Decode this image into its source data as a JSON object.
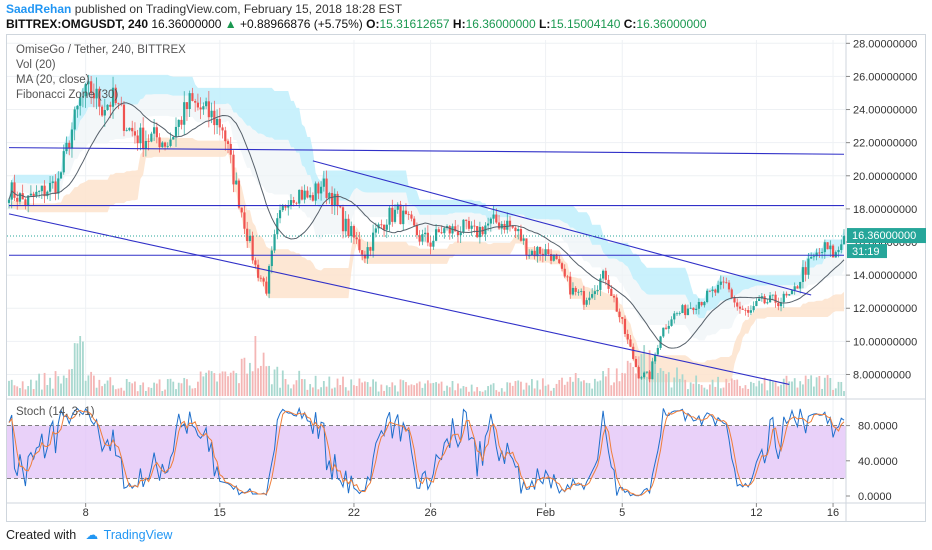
{
  "header": {
    "author": "SaadRehan",
    "published_text": "published on TradingView.com, February 15, 2018 18:28 EST",
    "symbol": "BITTREX:OMGUSDT, 240",
    "last": "16.36000000",
    "change": "+0.88966876 (+5.75%)",
    "open_label": "O:",
    "open": "15.31612657",
    "high_label": "H:",
    "high": "16.36000000",
    "low_label": "L:",
    "low": "15.15004140",
    "close_label": "C:",
    "close": "16.36000000"
  },
  "legend": {
    "title": "OmiseGo / Tether, 240, BITTREX",
    "vol": "Vol (20)",
    "ma": "MA (20, close)",
    "fib": "Fibonacci Zone (30)",
    "stoch": "Stoch (14, 3, 1)"
  },
  "footer": {
    "created_with": "Created with",
    "brand": "TradingView"
  },
  "colors": {
    "up": "#26a69a",
    "down": "#ef5350",
    "trendline": "#3030c8",
    "band_cloud": "#bfeefb",
    "band_peach": "#fde3cc",
    "stoch_bg": "#e4c6f7",
    "stoch_k": "#1e6fcc",
    "stoch_d": "#ef7e3a"
  },
  "chart_data": {
    "type": "candlestick",
    "price_axis": {
      "min": 6.7,
      "max": 28.2,
      "ticks": [
        "28.00000000",
        "26.00000000",
        "24.00000000",
        "22.00000000",
        "20.00000000",
        "18.00000000",
        "16.00000000",
        "14.00000000",
        "12.00000000",
        "10.00000000",
        "8.00000000"
      ],
      "tick_values": [
        28,
        26,
        24,
        22,
        20,
        18,
        16,
        14,
        12,
        10,
        8
      ]
    },
    "price_badge": "16.36000000",
    "timer_badge": "31:19",
    "x_axis": {
      "ticks": [
        "8",
        "15",
        "22",
        "26",
        "Feb",
        "5",
        "12",
        "16"
      ],
      "tick_bars": [
        28,
        77,
        126,
        154,
        196,
        224,
        273,
        301
      ]
    },
    "bars": 306,
    "close_anchors": [
      [
        0,
        19.2
      ],
      [
        6,
        18.4
      ],
      [
        12,
        19.0
      ],
      [
        18,
        19.6
      ],
      [
        22,
        22.2
      ],
      [
        26,
        24.5
      ],
      [
        30,
        25.2
      ],
      [
        34,
        24.2
      ],
      [
        38,
        24.6
      ],
      [
        44,
        22.8
      ],
      [
        48,
        22.3
      ],
      [
        54,
        22.3
      ],
      [
        58,
        22.0
      ],
      [
        62,
        23.2
      ],
      [
        66,
        24.4
      ],
      [
        70,
        24.0
      ],
      [
        74,
        23.6
      ],
      [
        78,
        23.0
      ],
      [
        82,
        20.0
      ],
      [
        86,
        17.2
      ],
      [
        90,
        14.5
      ],
      [
        94,
        13.2
      ],
      [
        98,
        17.0
      ],
      [
        102,
        18.8
      ],
      [
        106,
        19.0
      ],
      [
        110,
        18.6
      ],
      [
        114,
        19.5
      ],
      [
        118,
        18.8
      ],
      [
        122,
        17.2
      ],
      [
        126,
        16.2
      ],
      [
        130,
        15.3
      ],
      [
        134,
        16.6
      ],
      [
        138,
        17.5
      ],
      [
        142,
        17.8
      ],
      [
        146,
        17.1
      ],
      [
        150,
        16.3
      ],
      [
        154,
        16.0
      ],
      [
        158,
        16.7
      ],
      [
        162,
        16.7
      ],
      [
        166,
        16.8
      ],
      [
        170,
        16.5
      ],
      [
        174,
        17.0
      ],
      [
        178,
        17.2
      ],
      [
        182,
        17.1
      ],
      [
        186,
        16.5
      ],
      [
        190,
        15.4
      ],
      [
        194,
        15.5
      ],
      [
        198,
        15.3
      ],
      [
        202,
        14.0
      ],
      [
        206,
        13.0
      ],
      [
        210,
        12.6
      ],
      [
        214,
        13.4
      ],
      [
        218,
        14.0
      ],
      [
        222,
        12.0
      ],
      [
        226,
        10.0
      ],
      [
        230,
        8.0
      ],
      [
        234,
        7.9
      ],
      [
        238,
        10.5
      ],
      [
        242,
        11.5
      ],
      [
        246,
        11.8
      ],
      [
        250,
        12.3
      ],
      [
        254,
        12.6
      ],
      [
        258,
        13.0
      ],
      [
        262,
        13.4
      ],
      [
        266,
        12.1
      ],
      [
        270,
        11.6
      ],
      [
        274,
        12.3
      ],
      [
        278,
        12.4
      ],
      [
        282,
        12.5
      ],
      [
        286,
        12.7
      ],
      [
        290,
        14.2
      ],
      [
        294,
        15.0
      ],
      [
        298,
        15.6
      ],
      [
        302,
        15.2
      ],
      [
        305,
        16.36
      ]
    ],
    "volume_anchors": [
      [
        0,
        0.18
      ],
      [
        20,
        0.3
      ],
      [
        26,
        0.7
      ],
      [
        32,
        0.25
      ],
      [
        50,
        0.15
      ],
      [
        84,
        0.35
      ],
      [
        90,
        0.8
      ],
      [
        94,
        0.4
      ],
      [
        110,
        0.22
      ],
      [
        140,
        0.18
      ],
      [
        180,
        0.15
      ],
      [
        200,
        0.2
      ],
      [
        224,
        0.35
      ],
      [
        230,
        0.75
      ],
      [
        236,
        0.45
      ],
      [
        250,
        0.22
      ],
      [
        270,
        0.18
      ],
      [
        300,
        0.25
      ],
      [
        305,
        0.2
      ]
    ],
    "trendlines": [
      {
        "from": [
          0,
          17.7
        ],
        "to": [
          285,
          7.4
        ]
      },
      {
        "from": [
          111,
          20.9
        ],
        "to": [
          293,
          12.8
        ]
      },
      {
        "from": [
          0,
          21.7
        ],
        "to": [
          305,
          21.3
        ]
      },
      {
        "from": [
          0,
          18.2
        ],
        "to": [
          305,
          18.2
        ]
      },
      {
        "from": [
          0,
          15.2
        ],
        "to": [
          305,
          15.2
        ]
      }
    ],
    "stoch_axis": {
      "ticks": [
        "80.0000",
        "40.0000",
        "0.0000"
      ],
      "tick_values": [
        80,
        40,
        0
      ],
      "band": [
        20,
        80
      ]
    }
  }
}
